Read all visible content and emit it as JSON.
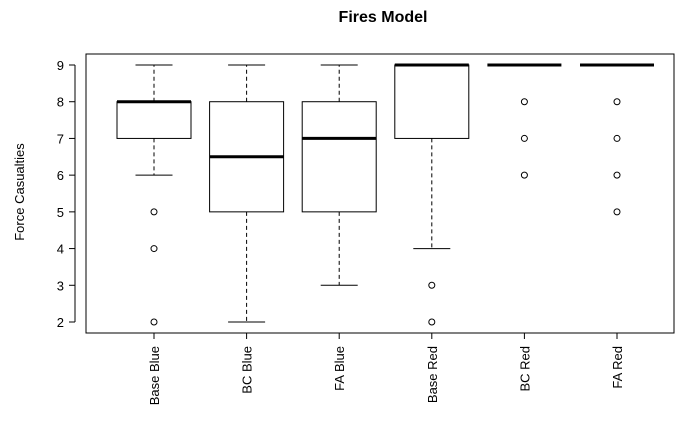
{
  "chart_data": {
    "type": "boxplot",
    "title": "Fires Model",
    "ylabel": "Force Casualties",
    "xlabel": "",
    "ylim": [
      1.7,
      9.3
    ],
    "yticks": [
      2,
      3,
      4,
      5,
      6,
      7,
      8,
      9
    ],
    "categories": [
      "Base Blue",
      "BC Blue",
      "FA Blue",
      "Base Red",
      "BC Red",
      "FA Red"
    ],
    "boxes": [
      {
        "category": "Base Blue",
        "min": 6,
        "q1": 7,
        "median": 8,
        "q3": 8,
        "max": 9,
        "outliers": [
          5,
          4,
          2
        ]
      },
      {
        "category": "BC Blue",
        "min": 2,
        "q1": 5,
        "median": 6.5,
        "q3": 8,
        "max": 9,
        "outliers": []
      },
      {
        "category": "FA Blue",
        "min": 3,
        "q1": 5,
        "median": 7,
        "q3": 8,
        "max": 9,
        "outliers": []
      },
      {
        "category": "Base Red",
        "min": 4,
        "q1": 7,
        "median": 9,
        "q3": 9,
        "max": 9,
        "outliers": [
          3,
          2
        ]
      },
      {
        "category": "BC Red",
        "min": 9,
        "q1": 9,
        "median": 9,
        "q3": 9,
        "max": 9,
        "outliers": [
          8,
          7,
          6
        ]
      },
      {
        "category": "FA Red",
        "min": 9,
        "q1": 9,
        "median": 9,
        "q3": 9,
        "max": 9,
        "outliers": [
          8,
          7,
          6,
          5
        ]
      }
    ],
    "grid": false,
    "legend": "none",
    "colors": {
      "box_fill": "#ffffff",
      "stroke": "#000000"
    }
  }
}
